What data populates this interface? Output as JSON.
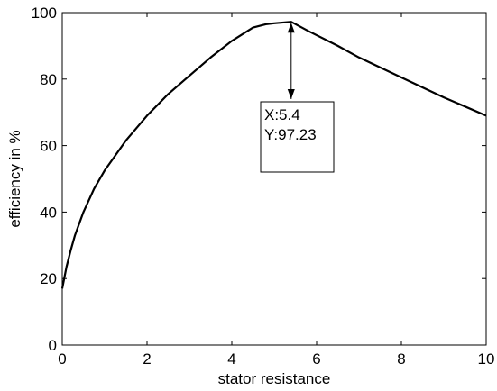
{
  "chart_data": {
    "type": "line",
    "title": "",
    "xlabel": "stator resistance",
    "ylabel": "efficiency in %",
    "xlim": [
      0,
      10
    ],
    "ylim": [
      0,
      100
    ],
    "x_ticks": [
      0,
      2,
      4,
      6,
      8,
      10
    ],
    "y_ticks": [
      0,
      20,
      40,
      60,
      80,
      100
    ],
    "grid": false,
    "line_color": "#000000",
    "series": [
      {
        "x": [
          0,
          0.1,
          0.2,
          0.3,
          0.5,
          0.75,
          1.0,
          1.5,
          2.0,
          2.5,
          3.0,
          3.5,
          4.0,
          4.5,
          4.8,
          5.0,
          5.4,
          5.8,
          6.5,
          7.0,
          8.0,
          9.0,
          10.0
        ],
        "y": [
          17,
          23.5,
          28.5,
          33,
          40,
          47,
          52.5,
          61.5,
          69,
          75.5,
          81,
          86.5,
          91.5,
          95.5,
          96.5,
          96.8,
          97.23,
          94.5,
          90,
          86.5,
          80.5,
          74.5,
          69
        ]
      }
    ],
    "datatip": {
      "x": 5.4,
      "y": 97.23,
      "x_text": "X:5.4",
      "y_text": "Y:97.23"
    }
  }
}
